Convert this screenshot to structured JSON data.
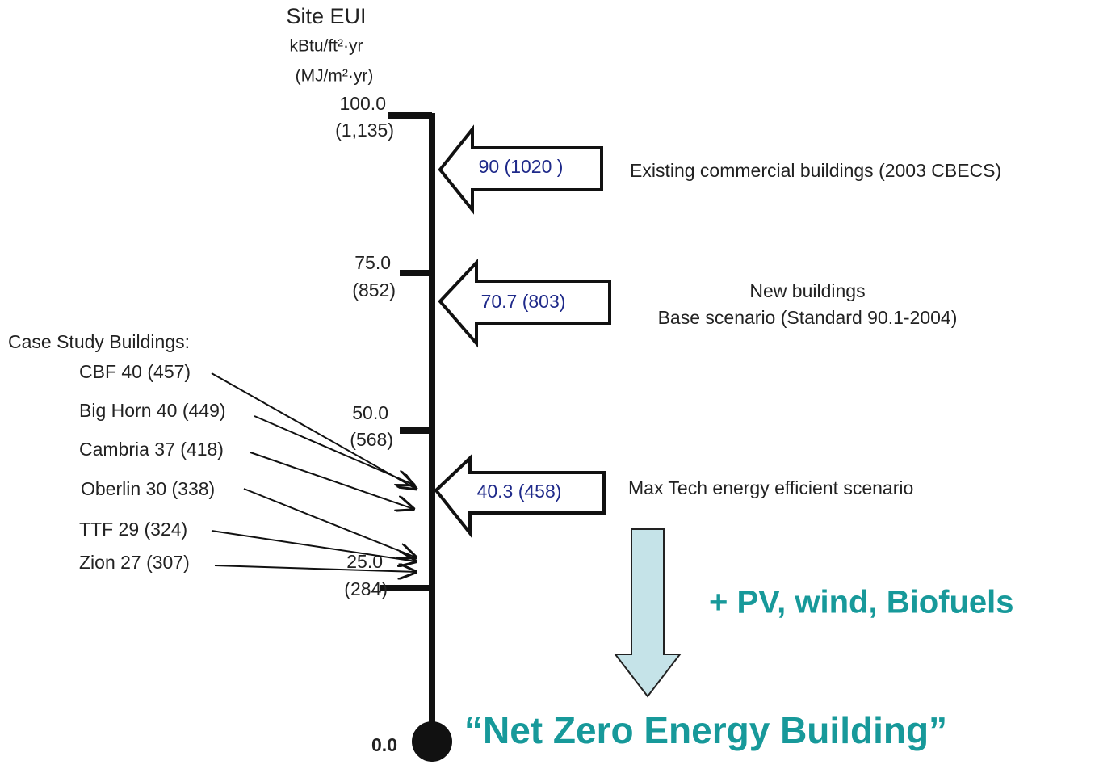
{
  "axis": {
    "title": "Site EUI",
    "unit_ip": "kBtu/ft²·yr",
    "unit_si": "(MJ/m²·yr)",
    "ticks": [
      {
        "label": "100.0",
        "si": "(1,135)"
      },
      {
        "label": "75.0",
        "si": "(852)"
      },
      {
        "label": "50.0",
        "si": "(568)"
      },
      {
        "label": "25.0",
        "si": "(284)"
      }
    ],
    "zero": "0.0"
  },
  "markers": [
    {
      "label": "90 (1020 )",
      "description": [
        "Existing commercial buildings (2003 CBECS)"
      ]
    },
    {
      "label": "70.7 (803)",
      "description": [
        "New buildings",
        "Base scenario (Standard 90.1-2004)"
      ]
    },
    {
      "label": "40.3 (458)",
      "description": [
        "Max Tech energy efficient scenario"
      ]
    }
  ],
  "case_studies": {
    "title": "Case Study Buildings:",
    "items": [
      "CBF 40 (457)",
      "Big Horn 40 (449)",
      "Cambria 37 (418)",
      "Oberlin 30 (338)",
      "TTF 29 (324)",
      "Zion 27 (307)"
    ]
  },
  "renewables": "+ PV, wind, Biofuels",
  "goal": "“Net Zero Energy Building”"
}
